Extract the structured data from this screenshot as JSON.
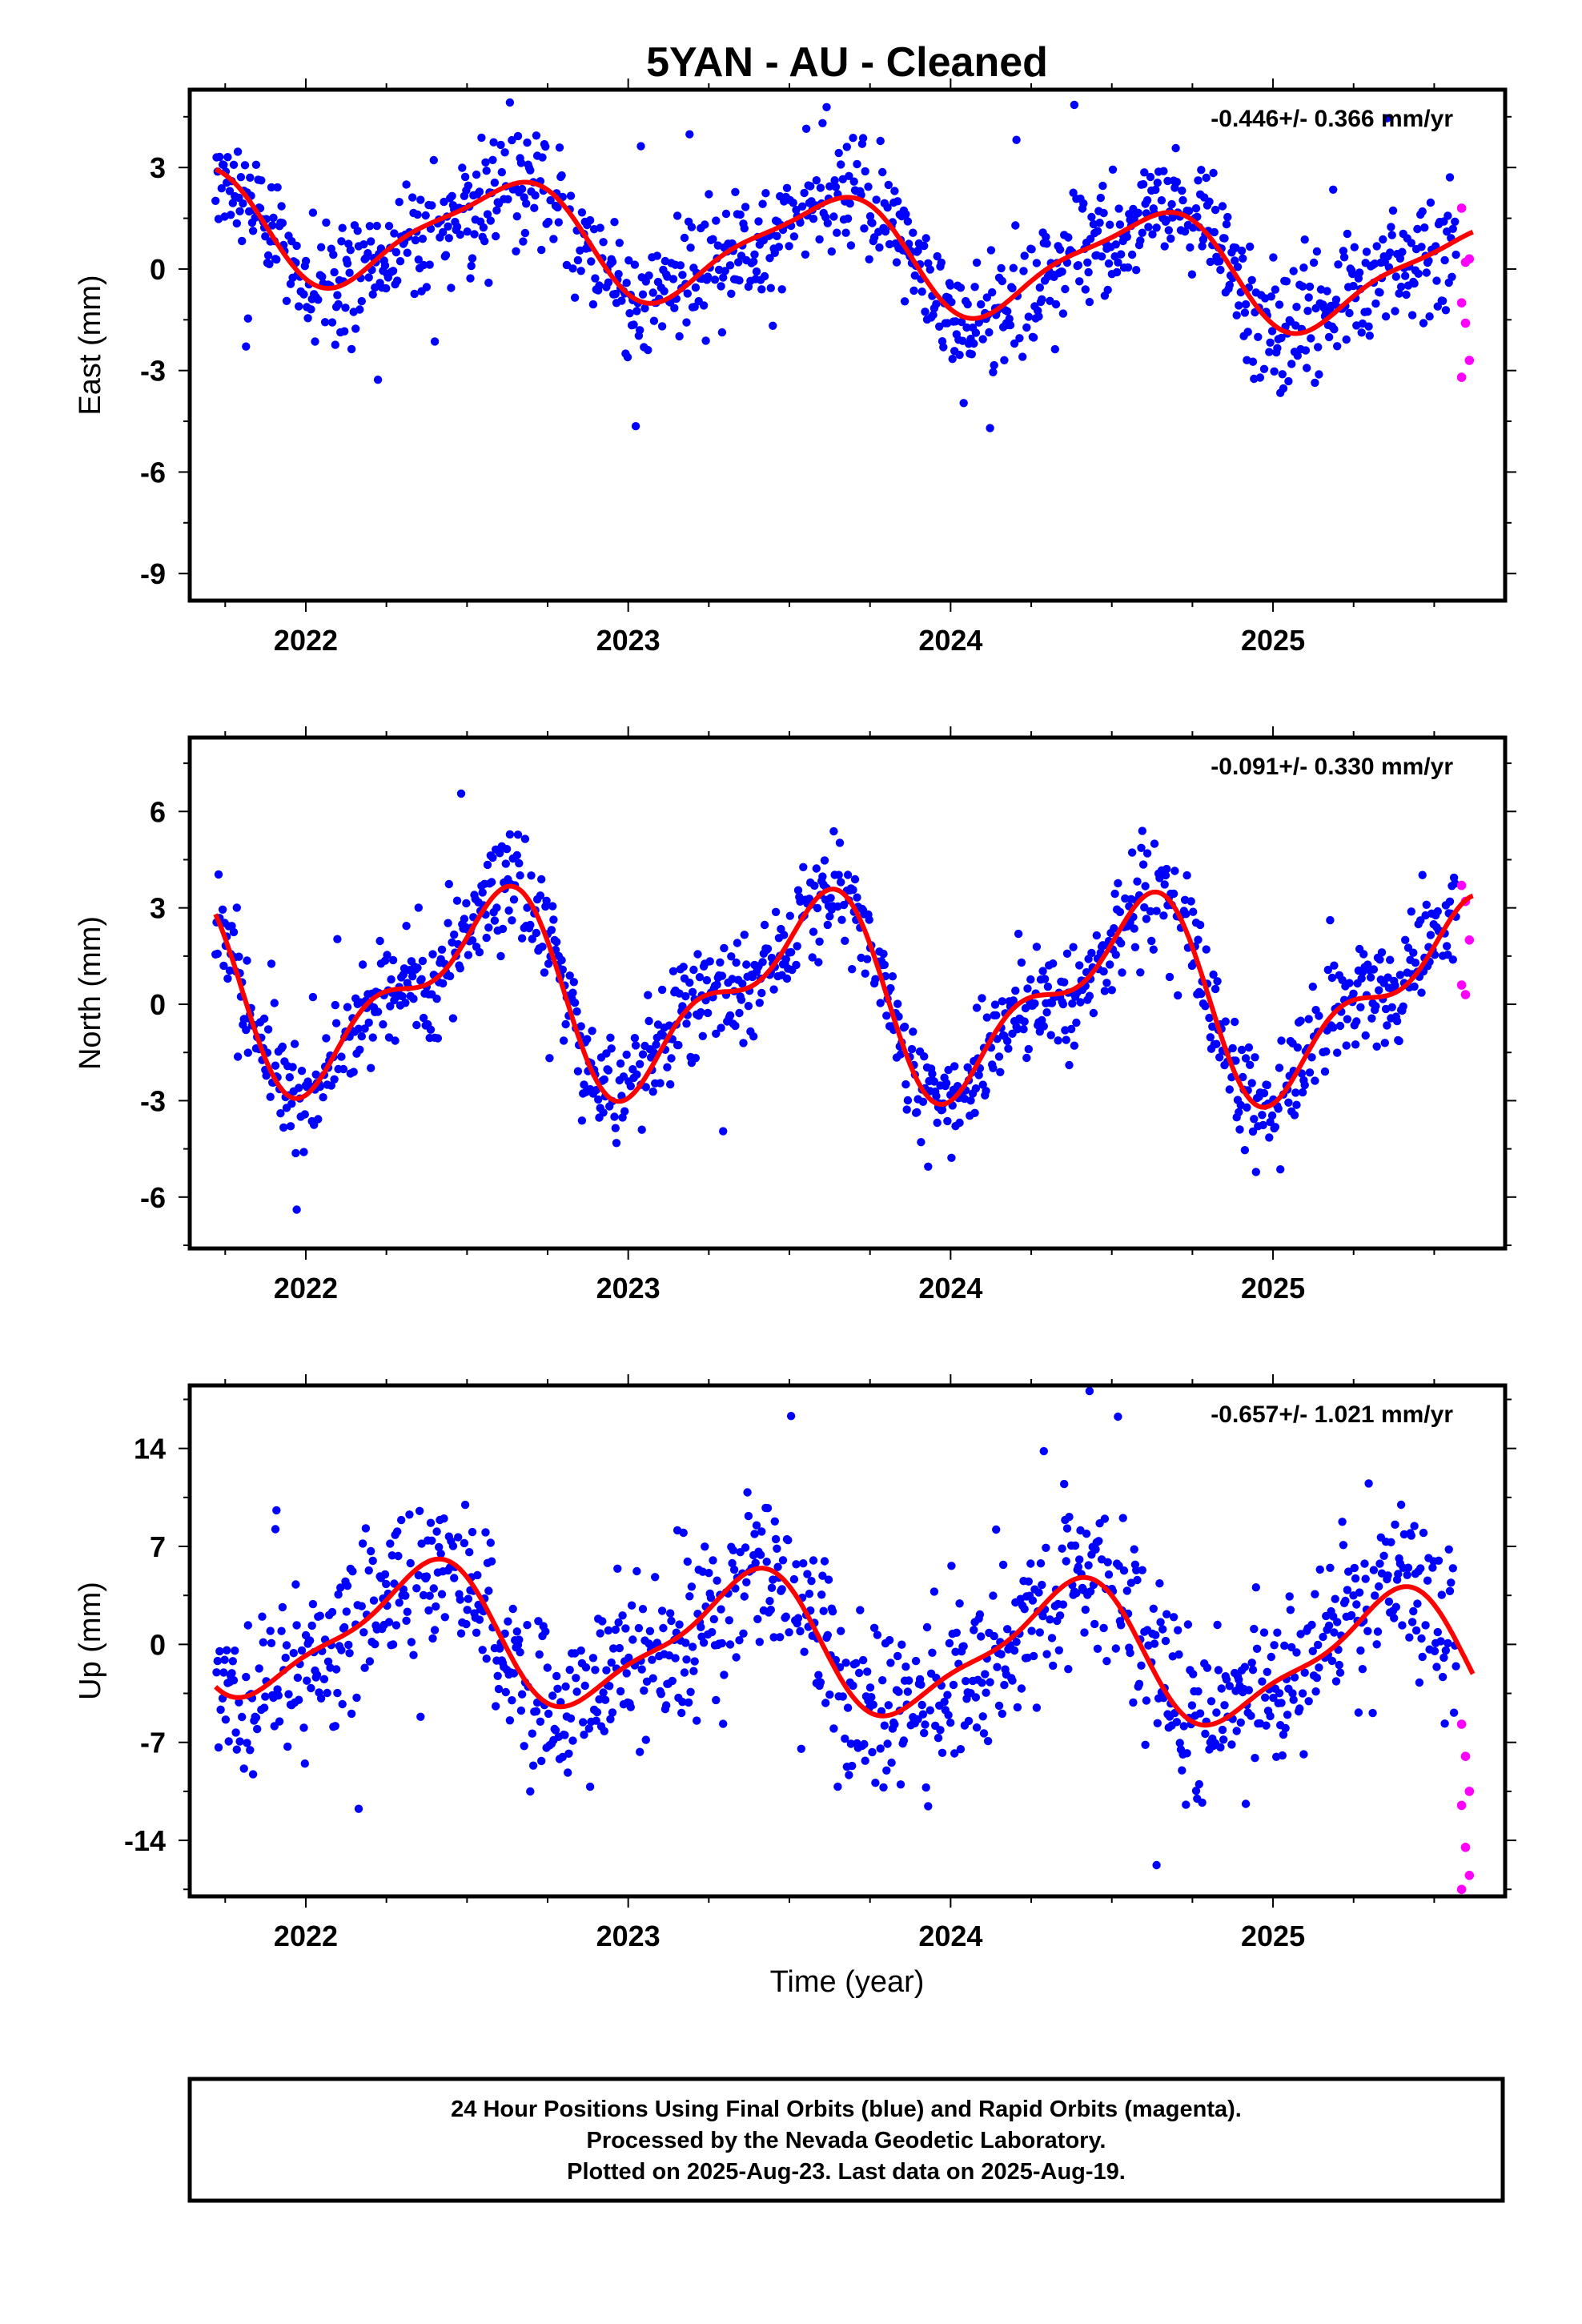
{
  "title": "5YAN  - AU - Cleaned",
  "footer": {
    "line1": "24 Hour Positions Using Final Orbits (blue) and Rapid Orbits (magenta).",
    "line2": "Processed by the Nevada Geodetic Laboratory.",
    "line3": "Plotted on 2025-Aug-23. Last data on 2025-Aug-19."
  },
  "xlabel": "Time (year)",
  "colors": {
    "final": "#0000ff",
    "rapid": "#ff00ff",
    "model": "#ff0000",
    "frame": "#000000"
  },
  "chart_data": [
    {
      "type": "scatter",
      "name": "east",
      "ylabel": "East (mm)",
      "rate": "-0.446+/- 0.366 mm/yr",
      "xlim": [
        2021.64,
        2025.72
      ],
      "ylim": [
        -9.8,
        5.3
      ],
      "xticks": [
        2022,
        2023,
        2024,
        2025
      ],
      "yticks": [
        3,
        0,
        -3,
        -6,
        -9
      ],
      "model": {
        "offset": 0.6,
        "trend": -0.446,
        "a1": 1.55,
        "p1": 4.0,
        "a2": 0.4,
        "p2": 4.5,
        "t0": 2023.5
      },
      "noise": 1.05,
      "rapid_y": [
        1.8,
        0.2,
        0.3,
        -1.0,
        -1.6,
        -2.7,
        -3.2
      ]
    },
    {
      "type": "scatter",
      "name": "north",
      "ylabel": "North (mm)",
      "rate": "-0.091+/- 0.330 mm/yr",
      "xlim": [
        2021.64,
        2025.72
      ],
      "ylim": [
        -7.6,
        8.3
      ],
      "xticks": [
        2022,
        2023,
        2024,
        2025
      ],
      "yticks": [
        6,
        3,
        0,
        -3,
        -6
      ],
      "model": {
        "offset": 0.3,
        "trend": -0.091,
        "a1": 2.6,
        "p1": 4.4,
        "a2": 1.25,
        "p2": 5.6,
        "t0": 2023.5
      },
      "noise": 1.0,
      "rapid_y": [
        3.7,
        3.2,
        2.0,
        0.6,
        0.3
      ]
    },
    {
      "type": "scatter",
      "name": "up",
      "ylabel": "Up (mm)",
      "rate": "-0.657+/- 1.021 mm/yr",
      "xlim": [
        2021.64,
        2025.72
      ],
      "ylim": [
        -18,
        18.5
      ],
      "xticks": [
        2022,
        2023,
        2024,
        2025
      ],
      "yticks": [
        14,
        7,
        0,
        -7,
        -14
      ],
      "model": {
        "offset": 0.0,
        "trend": -0.657,
        "a1": 4.6,
        "p1": -0.7,
        "a2": 1.3,
        "p2": 2.0,
        "t0": 2023.5
      },
      "noise": 3.5,
      "rapid_y": [
        -5.7,
        -8.0,
        -10.5,
        -11.5,
        -14.5,
        -16.5,
        -17.5
      ]
    }
  ]
}
